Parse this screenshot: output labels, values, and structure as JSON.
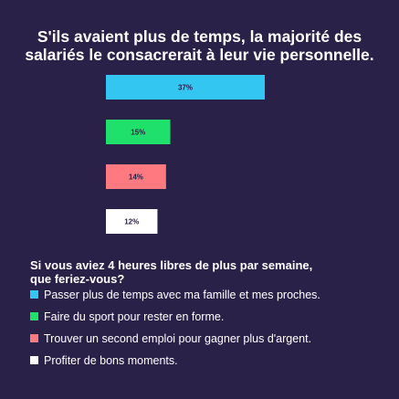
{
  "chart_data": {
    "type": "bar",
    "orientation": "horizontal",
    "title_lines": [
      "S'ils avaient plus de temps, la majorité des",
      "salariés le consacrerait à leur vie personnelle."
    ],
    "categories": [
      "Passer plus de temps avec ma famille et mes proches.",
      "Faire du sport pour rester en forme.",
      "Trouver un second emploi pour gagner plus d'argent.",
      "Profiter de bons moments."
    ],
    "values": [
      37,
      15,
      14,
      12
    ],
    "value_labels": [
      "37%",
      "15%",
      "14%",
      "12%"
    ],
    "colors": [
      "#33c6f0",
      "#1fe06a",
      "#ff7a80",
      "#ffffff"
    ],
    "label_colors": [
      "#2a2149",
      "#2a2149",
      "#2a2149",
      "#2a2149"
    ],
    "unit": "%",
    "legend_question_lines": [
      "Si vous aviez 4 heures libres de plus par semaine,",
      "que feriez-vous?"
    ],
    "legend_position": "bottom-left",
    "grid": false
  }
}
